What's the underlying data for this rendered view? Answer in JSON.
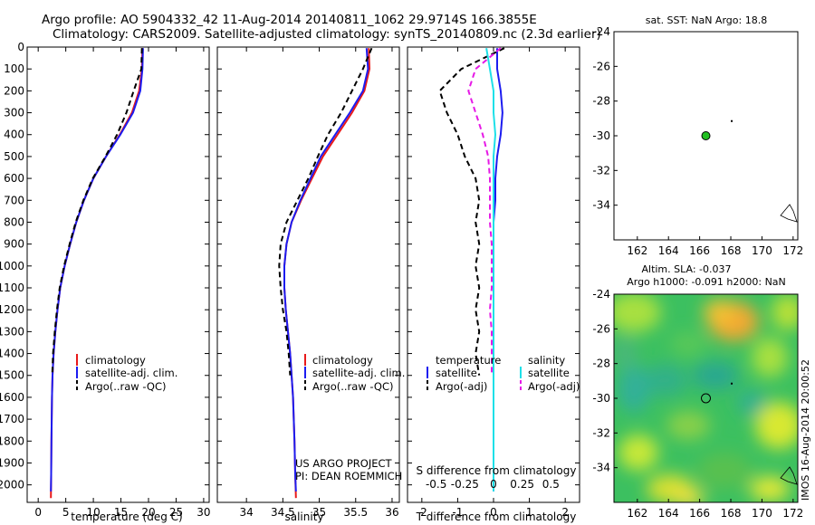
{
  "header": {
    "line1": "Argo profile: AO 5904332_42 11-Aug-2014 20140811_1062 29.9714S 166.3855E",
    "line2": "Climatology: CARS2009. Satellite-adjusted climatology: synTS_20140809.nc (2.3d earlier)"
  },
  "footer": {
    "project": "US ARGO PROJECT",
    "pi": "PI: DEAN ROEMMICH",
    "imos_stamp": "IMOS 16-Aug-2014 20:00:52"
  },
  "colors": {
    "climatology": "#e8191a",
    "satellite": "#1c1cf0",
    "argo": "#000000",
    "salinity_satellite": "#1ee0e8",
    "salinity_argo": "#e619e6",
    "float_marker": "#22c022"
  },
  "chart_data": [
    {
      "type": "line",
      "panel": "temperature",
      "xlabel": "temperature (deg C)",
      "ylabel": "",
      "xlim": [
        -2,
        31
      ],
      "ylim": [
        2080,
        0
      ],
      "x_ticks": [
        "0",
        "5",
        "10",
        "15",
        "20",
        "25",
        "30"
      ],
      "y_ticks": [
        "0",
        "100",
        "200",
        "300",
        "400",
        "500",
        "600",
        "700",
        "800",
        "900",
        "1000",
        "1100",
        "1200",
        "1300",
        "1400",
        "1500",
        "1600",
        "1700",
        "1800",
        "1900",
        "2000"
      ],
      "legend": {
        "position": "lower-center",
        "entries": [
          "climatology",
          "satellite-adj. clim.",
          "Argo(..raw -QC)"
        ]
      },
      "series": [
        {
          "name": "climatology",
          "style": "solid",
          "color": "#e8191a",
          "x": [
            18.9,
            18.8,
            18.3,
            17.0,
            14.8,
            12.3,
            10.0,
            8.3,
            6.9,
            5.8,
            4.8,
            4.0,
            3.5,
            3.1,
            2.8,
            2.6,
            2.5,
            2.4,
            2.35,
            2.3
          ],
          "y": [
            5,
            100,
            200,
            300,
            400,
            500,
            600,
            700,
            800,
            900,
            1000,
            1100,
            1200,
            1300,
            1400,
            1500,
            1600,
            1800,
            1950,
            2060
          ]
        },
        {
          "name": "satellite-adj. clim.",
          "style": "solid",
          "color": "#1c1cf0",
          "x": [
            19.0,
            18.9,
            18.5,
            17.2,
            14.9,
            12.3,
            10.0,
            8.3,
            6.9,
            5.8,
            4.8,
            4.0,
            3.5,
            3.1,
            2.8,
            2.6,
            2.5,
            2.4,
            2.35,
            2.3
          ],
          "y": [
            5,
            100,
            200,
            300,
            400,
            500,
            600,
            700,
            800,
            900,
            1000,
            1100,
            1200,
            1300,
            1400,
            1500,
            1600,
            1800,
            1950,
            2030
          ]
        },
        {
          "name": "Argo(..raw -QC)",
          "style": "dashed",
          "color": "#000000",
          "x": [
            18.8,
            18.7,
            17.3,
            16.0,
            14.3,
            12.2,
            9.9,
            8.2,
            6.8,
            5.7,
            4.7,
            3.9,
            3.4,
            3.0,
            2.7,
            2.55
          ],
          "y": [
            5,
            100,
            200,
            300,
            400,
            500,
            600,
            700,
            800,
            900,
            1000,
            1100,
            1200,
            1300,
            1400,
            1500
          ]
        }
      ]
    },
    {
      "type": "line",
      "panel": "salinity",
      "xlabel": "salinity",
      "ylabel": "",
      "xlim": [
        33.6,
        36.1
      ],
      "ylim": [
        2080,
        0
      ],
      "x_ticks": [
        "34",
        "34.5",
        "35",
        "35.5",
        "36"
      ],
      "legend": {
        "position": "lower-center",
        "entries": [
          "climatology",
          "satellite-adj. clim.",
          "Argo(..raw -QC)"
        ]
      },
      "series": [
        {
          "name": "climatology",
          "style": "solid",
          "color": "#e8191a",
          "x": [
            35.68,
            35.69,
            35.62,
            35.45,
            35.25,
            35.05,
            34.9,
            34.75,
            34.62,
            34.55,
            34.52,
            34.52,
            34.54,
            34.57,
            34.6,
            34.62,
            34.64,
            34.66,
            34.67,
            34.68
          ],
          "y": [
            5,
            100,
            200,
            300,
            400,
            500,
            600,
            700,
            800,
            900,
            1000,
            1100,
            1200,
            1300,
            1400,
            1500,
            1600,
            1800,
            1950,
            2060
          ]
        },
        {
          "name": "satellite-adj. clim.",
          "style": "solid",
          "color": "#1c1cf0",
          "x": [
            35.65,
            35.67,
            35.6,
            35.42,
            35.22,
            35.02,
            34.88,
            34.74,
            34.62,
            34.55,
            34.52,
            34.52,
            34.54,
            34.57,
            34.6,
            34.62,
            34.64,
            34.66,
            34.67,
            34.68
          ],
          "y": [
            5,
            100,
            200,
            300,
            400,
            500,
            600,
            700,
            800,
            900,
            1000,
            1100,
            1200,
            1300,
            1400,
            1500,
            1600,
            1800,
            1950,
            2030
          ]
        },
        {
          "name": "Argo(..raw -QC)",
          "style": "dashed",
          "color": "#000000",
          "x": [
            35.72,
            35.6,
            35.45,
            35.3,
            35.12,
            34.98,
            34.85,
            34.7,
            34.55,
            34.47,
            34.45,
            34.47,
            34.5,
            34.55,
            34.58,
            34.6
          ],
          "y": [
            5,
            100,
            200,
            300,
            400,
            500,
            600,
            700,
            800,
            900,
            1000,
            1100,
            1200,
            1300,
            1400,
            1500
          ]
        }
      ]
    },
    {
      "type": "line",
      "panel": "difference",
      "xlabel": "T difference from climatology",
      "top_label": "S difference from climatology",
      "xlim": [
        -2.4,
        2.4
      ],
      "ylim": [
        2080,
        0
      ],
      "x_ticks": [
        "-2",
        "-1",
        "0",
        "1",
        "2"
      ],
      "s_ticks": [
        "-0.5",
        "-0.25",
        "0",
        "0.25",
        "0.5"
      ],
      "legend": {
        "position": "lower-center",
        "headers": [
          "temperature",
          "salinity"
        ],
        "entries": [
          "satellite",
          "Argo(-adj)",
          "satellite",
          "Argo(-adj)"
        ]
      },
      "series": [
        {
          "name": "temperature satellite",
          "style": "solid",
          "color": "#1c1cf0",
          "x": [
            0.1,
            0.1,
            0.2,
            0.25,
            0.2,
            0.1,
            0.05,
            0.05,
            0,
            0,
            0,
            0,
            0,
            0,
            0,
            0,
            0,
            0,
            0
          ],
          "y": [
            5,
            100,
            200,
            300,
            400,
            500,
            600,
            700,
            800,
            900,
            1000,
            1100,
            1200,
            1300,
            1400,
            1500,
            1600,
            1800,
            2030
          ]
        },
        {
          "name": "temperature Argo(-adj)",
          "style": "dashed",
          "color": "#000000",
          "x": [
            0.3,
            -0.9,
            -1.5,
            -1.3,
            -1.0,
            -0.8,
            -0.5,
            -0.4,
            -0.5,
            -0.4,
            -0.5,
            -0.4,
            -0.5,
            -0.4,
            -0.5,
            -0.4
          ],
          "y": [
            5,
            100,
            200,
            300,
            400,
            500,
            600,
            700,
            800,
            900,
            1000,
            1100,
            1200,
            1300,
            1400,
            1500
          ]
        },
        {
          "name": "salinity satellite",
          "style": "solid",
          "color": "#1ee0e8",
          "x": [
            -0.2,
            -0.1,
            0,
            0,
            0.05,
            0,
            0,
            0,
            0,
            0,
            0,
            0,
            0,
            0,
            0,
            0,
            0,
            0,
            0
          ],
          "y": [
            5,
            100,
            200,
            300,
            400,
            500,
            600,
            700,
            800,
            900,
            1000,
            1100,
            1200,
            1300,
            1400,
            1500,
            1600,
            1800,
            2030
          ]
        },
        {
          "name": "salinity Argo(-adj)",
          "style": "dashed",
          "color": "#e619e6",
          "x": [
            0.2,
            -0.5,
            -0.7,
            -0.5,
            -0.3,
            -0.15,
            -0.1,
            -0.1,
            -0.1,
            -0.05,
            -0.05,
            -0.05,
            -0.1,
            -0.05,
            -0.05,
            -0.05
          ],
          "y": [
            5,
            100,
            200,
            300,
            400,
            500,
            600,
            700,
            800,
            900,
            1000,
            1100,
            1200,
            1300,
            1400,
            1500
          ]
        }
      ]
    },
    {
      "type": "scatter",
      "panel": "sst-map",
      "title": "sat. SST: NaN Argo: 18.8",
      "xlim": [
        160.5,
        172.3
      ],
      "ylim": [
        -36,
        -24
      ],
      "x_ticks": [
        "162",
        "164",
        "166",
        "168",
        "170",
        "172"
      ],
      "y_ticks": [
        "-24",
        "-26",
        "-28",
        "-30",
        "-32",
        "-34"
      ],
      "points": [
        {
          "x": 166.4,
          "y": -30.0
        }
      ]
    },
    {
      "type": "heatmap",
      "panel": "sla-map",
      "title_line1": "Altim. SLA: -0.037",
      "title_line2": "Argo h1000: -0.091 h2000: NaN",
      "xlim": [
        160.5,
        172.3
      ],
      "ylim": [
        -36,
        -24
      ],
      "x_ticks": [
        "162",
        "164",
        "166",
        "168",
        "170",
        "172"
      ],
      "y_ticks": [
        "-24",
        "-26",
        "-28",
        "-30",
        "-32",
        "-34"
      ],
      "points": [
        {
          "x": 166.4,
          "y": -30.0
        }
      ]
    }
  ]
}
